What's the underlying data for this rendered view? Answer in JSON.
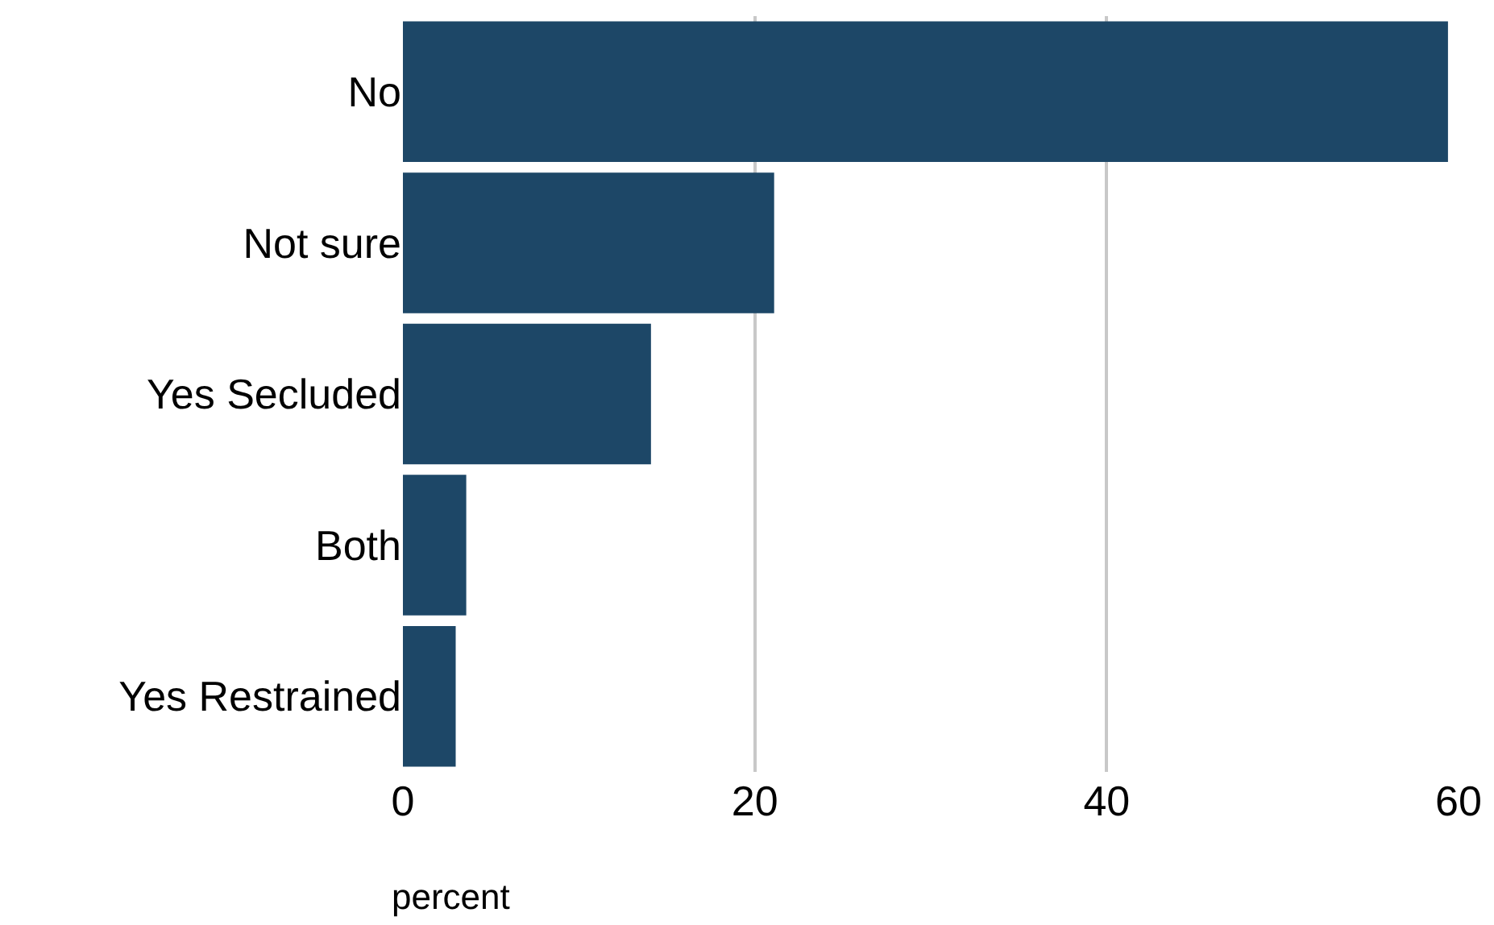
{
  "chart_data": {
    "type": "bar",
    "orientation": "horizontal",
    "categories": [
      "No",
      "Not sure",
      "Yes Secluded",
      "Both",
      "Yes Restrained"
    ],
    "values": [
      59.4,
      21.1,
      14.1,
      3.6,
      3.0
    ],
    "color": "#1d4767",
    "xlabel": "percent",
    "xlim": [
      0,
      60
    ],
    "xticks": [
      0,
      20,
      40,
      60
    ],
    "grid": "x"
  }
}
